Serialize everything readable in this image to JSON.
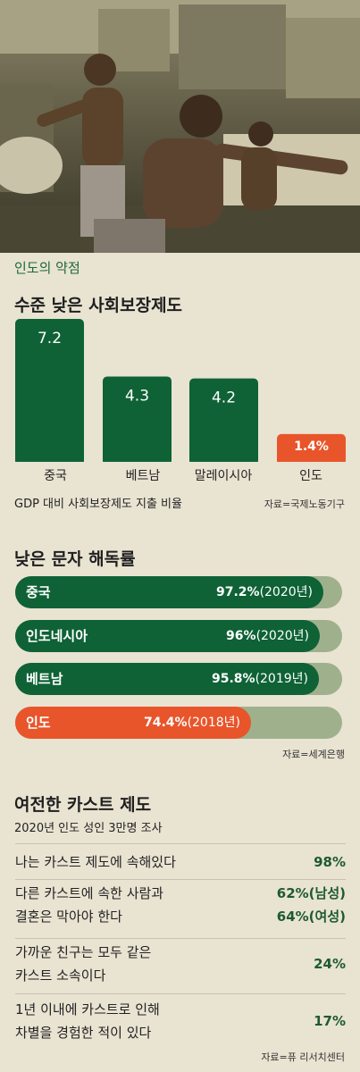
{
  "photo": {
    "description_icon": "workers-photo"
  },
  "section1": {
    "kicker": "인도의 약점",
    "title": "수준 낮은 사회보장제도",
    "note": "GDP 대비 사회보장제도 지출 비율",
    "source": "자료=국제노동기구"
  },
  "section2": {
    "title": "낮은 문자 해독률",
    "source": "자료=세계은행"
  },
  "section3": {
    "title": "여전한 카스트 제도",
    "subtitle": "2020년 인도 성인 3만명 조사",
    "source": "자료=퓨 리서치센터",
    "rows": [
      {
        "q1": "나는 카스트 제도에 속해있다",
        "q2": "",
        "v1": "98%",
        "v2": ""
      },
      {
        "q1": "다른 카스트에 속한 사람과",
        "q2": "결혼은 막아야 한다",
        "v1": "62%(남성)",
        "v2": "64%(여성)"
      },
      {
        "q1": "가까운 친구는 모두 같은",
        "q2": "카스트 소속이다",
        "v1": "24%",
        "v2": ""
      },
      {
        "q1": "1년 이내에 카스트로 인해",
        "q2": "차별을 경험한 적이 있다",
        "v1": "17%",
        "v2": ""
      }
    ]
  },
  "colors": {
    "green": "#0e6236",
    "orange": "#e8552b",
    "track": "#9fb08d"
  },
  "chart_data": [
    {
      "type": "bar",
      "title": "수준 낮은 사회보장제도",
      "xlabel": "GDP 대비 사회보장제도 지출 비율",
      "categories": [
        "중국",
        "베트남",
        "말레이시아",
        "인도"
      ],
      "values": [
        7.2,
        4.3,
        4.2,
        1.4
      ],
      "value_labels": [
        "7.2",
        "4.3",
        "4.2",
        "1.4%"
      ],
      "highlight": "인도",
      "ylim": [
        0,
        7.2
      ],
      "grid": false
    },
    {
      "type": "bar",
      "orientation": "horizontal",
      "title": "낮은 문자 해독률",
      "categories": [
        "중국",
        "인도네시아",
        "베트남",
        "인도"
      ],
      "values": [
        97.2,
        96,
        95.8,
        74.4
      ],
      "value_labels": [
        "97.2%",
        "96%",
        "95.8%",
        "74.4%"
      ],
      "years": [
        "(2020년)",
        "(2020년)",
        "(2019년)",
        "(2018년)"
      ],
      "highlight": "인도",
      "xlim": [
        0,
        100
      ]
    }
  ]
}
